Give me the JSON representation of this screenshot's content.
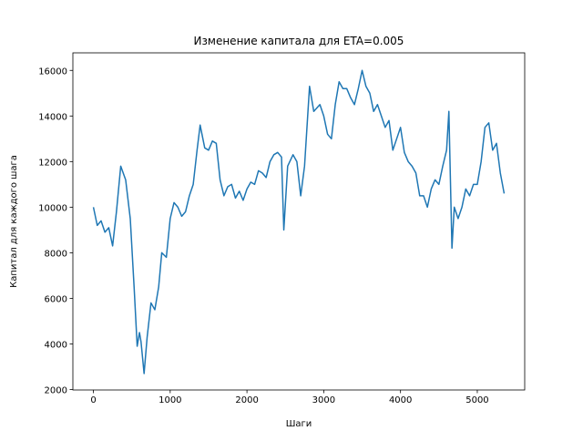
{
  "chart_data": {
    "type": "line",
    "title": "Изменение капитала для ETA=0.005",
    "x_label": "Шаги",
    "y_label": "Капитал для каждого шага",
    "x": [
      0,
      50,
      100,
      150,
      200,
      250,
      300,
      356,
      420,
      480,
      530,
      570,
      600,
      620,
      660,
      700,
      750,
      800,
      850,
      890,
      950,
      1000,
      1050,
      1100,
      1150,
      1200,
      1250,
      1300,
      1350,
      1390,
      1450,
      1500,
      1550,
      1600,
      1650,
      1700,
      1750,
      1800,
      1850,
      1900,
      1950,
      2000,
      2050,
      2100,
      2150,
      2200,
      2250,
      2300,
      2350,
      2400,
      2450,
      2480,
      2530,
      2600,
      2650,
      2700,
      2750,
      2815,
      2870,
      2950,
      3000,
      3050,
      3100,
      3150,
      3200,
      3250,
      3300,
      3350,
      3400,
      3450,
      3500,
      3550,
      3600,
      3650,
      3700,
      3750,
      3800,
      3850,
      3900,
      3950,
      4000,
      4050,
      4100,
      4150,
      4200,
      4250,
      4300,
      4350,
      4400,
      4450,
      4500,
      4550,
      4600,
      4630,
      4670,
      4700,
      4750,
      4800,
      4850,
      4900,
      4950,
      5000,
      5050,
      5100,
      5150,
      5200,
      5250,
      5300,
      5350
    ],
    "series": [
      {
        "name": "capital",
        "color": "#1f77b4",
        "values": [
          10000,
          9200,
          9400,
          8900,
          9100,
          8300,
          9800,
          11800,
          11200,
          9500,
          6500,
          3900,
          4500,
          4100,
          2700,
          4300,
          5800,
          5500,
          6500,
          8000,
          7800,
          9500,
          10200,
          10000,
          9600,
          9800,
          10500,
          11000,
          12500,
          13600,
          12600,
          12500,
          12900,
          12800,
          11200,
          10500,
          10900,
          11000,
          10400,
          10700,
          10300,
          10800,
          11100,
          11000,
          11600,
          11500,
          11300,
          12000,
          12300,
          12400,
          12200,
          9000,
          11800,
          12300,
          12000,
          10500,
          11800,
          15300,
          14200,
          14500,
          14000,
          13200,
          13000,
          14500,
          15500,
          15200,
          15200,
          14800,
          14500,
          15200,
          16000,
          15300,
          15000,
          14200,
          14500,
          14000,
          13500,
          13800,
          12500,
          13000,
          13500,
          12400,
          12000,
          11800,
          11500,
          10500,
          10500,
          10000,
          10800,
          11200,
          11000,
          11800,
          12500,
          14200,
          8200,
          10000,
          9500,
          10000,
          10800,
          10500,
          11000,
          11000,
          12000,
          13500,
          13700,
          12500,
          12800,
          11500,
          10600
        ]
      }
    ],
    "xlim": [
      -267.5,
      5617.5
    ],
    "ylim": [
      1980,
      16770
    ],
    "xticks": [
      0,
      1000,
      2000,
      3000,
      4000,
      5000
    ],
    "yticks": [
      2000,
      4000,
      6000,
      8000,
      10000,
      12000,
      14000,
      16000
    ]
  }
}
